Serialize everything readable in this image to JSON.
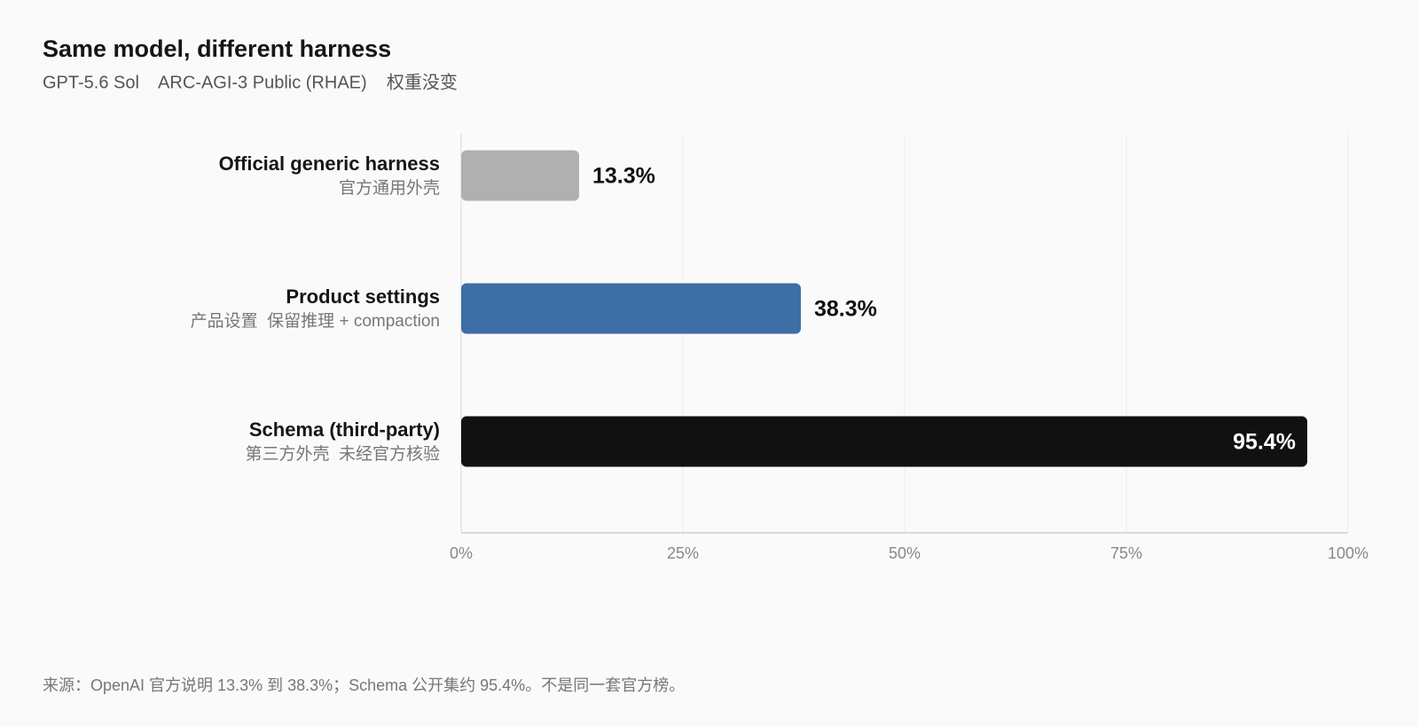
{
  "chart_data": {
    "type": "bar",
    "orientation": "horizontal",
    "title": "Same model, different harness",
    "subtitle": "GPT-5.6 Sol    ARC-AGI-3 Public (RHAE)    权重没变",
    "categories": [
      "Official generic harness",
      "Product settings",
      "Schema (third-party)"
    ],
    "category_notes": [
      "官方通用外壳",
      "产品设置  保留推理 + compaction",
      "第三方外壳  未经官方核验"
    ],
    "values": [
      13.3,
      38.3,
      95.4
    ],
    "value_labels": [
      "13.3%",
      "38.3%",
      "95.4%"
    ],
    "colors": [
      "#b0b0b0",
      "#3d6ea5",
      "#111111"
    ],
    "xlim": [
      0,
      100
    ],
    "xticks": [
      {
        "value": 0,
        "label": "0%"
      },
      {
        "value": 25,
        "label": "25%"
      },
      {
        "value": 50,
        "label": "50%"
      },
      {
        "value": 75,
        "label": "75%"
      },
      {
        "value": 100,
        "label": "100%"
      }
    ],
    "grid": true,
    "note": "来源：OpenAI 官方说明 13.3% 到 38.3%；Schema 公开集约 95.4%。不是同一套官方榜。"
  }
}
